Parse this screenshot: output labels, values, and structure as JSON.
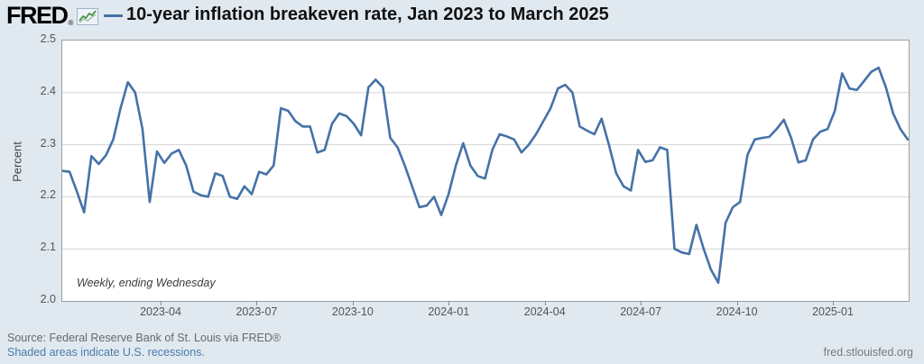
{
  "header": {
    "logo_text": "FRED",
    "registered_mark": "®",
    "title": "10-year inflation breakeven rate, Jan 2023 to March 2025"
  },
  "chart_data": {
    "type": "line",
    "title": "10-year inflation breakeven rate, Jan 2023 to March 2025",
    "period": "Jan 2023 to March 2025",
    "ylabel": "Percent",
    "ylim": [
      2.0,
      2.5
    ],
    "y_ticks": [
      "2.5",
      "2.4",
      "2.3",
      "2.2",
      "2.1",
      "2.0"
    ],
    "x_ticks": [
      "2023-04",
      "2023-07",
      "2023-10",
      "2024-01",
      "2024-04",
      "2024-07",
      "2024-10",
      "2025-01"
    ],
    "grid": "horizontal",
    "legend_position": "title-inline",
    "note": "Weekly, ending Wednesday",
    "series": [
      {
        "name": "10-year inflation breakeven rate",
        "frequency": "Weekly, ending Wednesday",
        "color": "#4572a7",
        "values": [
          2.25,
          2.248,
          2.21,
          2.17,
          2.278,
          2.263,
          2.28,
          2.31,
          2.37,
          2.42,
          2.4,
          2.33,
          2.19,
          2.287,
          2.265,
          2.283,
          2.29,
          2.26,
          2.21,
          2.203,
          2.2,
          2.245,
          2.24,
          2.2,
          2.196,
          2.22,
          2.205,
          2.248,
          2.243,
          2.26,
          2.37,
          2.365,
          2.345,
          2.335,
          2.335,
          2.285,
          2.29,
          2.34,
          2.36,
          2.355,
          2.34,
          2.318,
          2.41,
          2.425,
          2.41,
          2.313,
          2.295,
          2.26,
          2.22,
          2.18,
          2.183,
          2.2,
          2.165,
          2.205,
          2.26,
          2.303,
          2.26,
          2.24,
          2.235,
          2.29,
          2.32,
          2.316,
          2.31,
          2.285,
          2.3,
          2.32,
          2.345,
          2.37,
          2.408,
          2.415,
          2.4,
          2.335,
          2.327,
          2.32,
          2.35,
          2.3,
          2.245,
          2.22,
          2.212,
          2.29,
          2.267,
          2.27,
          2.295,
          2.29,
          2.1,
          2.093,
          2.09,
          2.146,
          2.1,
          2.06,
          2.035,
          2.15,
          2.18,
          2.19,
          2.28,
          2.31,
          2.313,
          2.315,
          2.33,
          2.348,
          2.313,
          2.266,
          2.27,
          2.31,
          2.325,
          2.33,
          2.365,
          2.437,
          2.408,
          2.405,
          2.422,
          2.44,
          2.448,
          2.41,
          2.36,
          2.33,
          2.31
        ]
      }
    ]
  },
  "footer": {
    "source": "Source: Federal Reserve Bank of St. Louis via FRED®",
    "recessions_link": "Shaded areas indicate U.S. recessions.",
    "site": "fred.stlouisfed.org"
  },
  "colors": {
    "background": "#e1e9f0",
    "plot_background": "#ffffff",
    "line": "#4572a7",
    "gridline": "#d6d6d6",
    "plot_border": "#9e9e9e",
    "tick_text": "#555555",
    "link": "#4a7bab",
    "logo_sparkline": "#3d8a41"
  }
}
